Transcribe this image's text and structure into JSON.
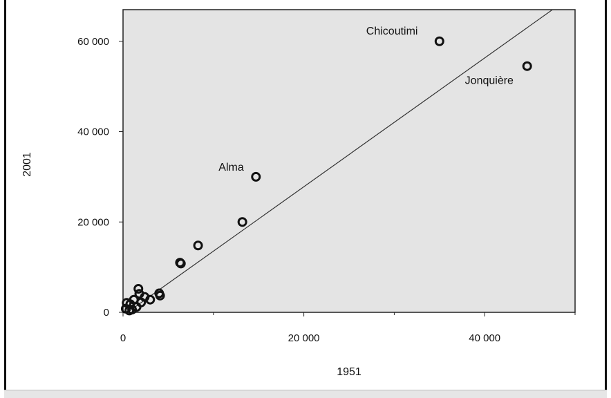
{
  "chart_data": {
    "type": "scatter",
    "title": "",
    "xlabel": "1951",
    "ylabel": "2001",
    "xlim": [
      0,
      50000
    ],
    "ylim": [
      0,
      67000
    ],
    "xticks": [
      0,
      20000,
      40000
    ],
    "xtick_labels": [
      "0",
      "20 000",
      "40 000"
    ],
    "yticks": [
      0,
      20000,
      40000,
      60000
    ],
    "ytick_labels": [
      "0",
      "20 000",
      "40 000",
      "60 000"
    ],
    "grid": false,
    "background_color": "#e4e4e4",
    "marker_color": "#111111",
    "points": [
      {
        "x": 35000,
        "y": 60000
      },
      {
        "x": 44700,
        "y": 54500
      },
      {
        "x": 14700,
        "y": 30000
      },
      {
        "x": 13200,
        "y": 20000
      },
      {
        "x": 8300,
        "y": 14800
      },
      {
        "x": 6400,
        "y": 10800
      },
      {
        "x": 6300,
        "y": 11000
      },
      {
        "x": 4000,
        "y": 4200
      },
      {
        "x": 4100,
        "y": 3700
      },
      {
        "x": 3000,
        "y": 2800
      },
      {
        "x": 2400,
        "y": 3400
      },
      {
        "x": 1700,
        "y": 5200
      },
      {
        "x": 1800,
        "y": 4100
      },
      {
        "x": 2000,
        "y": 2200
      },
      {
        "x": 1500,
        "y": 1200
      },
      {
        "x": 1200,
        "y": 2800
      },
      {
        "x": 800,
        "y": 1800
      },
      {
        "x": 400,
        "y": 2100
      },
      {
        "x": 300,
        "y": 800
      },
      {
        "x": 700,
        "y": 400
      },
      {
        "x": 1000,
        "y": 600
      }
    ],
    "annotations": [
      {
        "text": "Chicoutimi",
        "x": 35000,
        "y": 60000
      },
      {
        "text": "Jonquière",
        "x": 44700,
        "y": 54500
      },
      {
        "text": "Alma",
        "x": 14700,
        "y": 30000
      }
    ],
    "trend_line": {
      "x": [
        500,
        47500
      ],
      "y": [
        0,
        67000
      ]
    }
  }
}
